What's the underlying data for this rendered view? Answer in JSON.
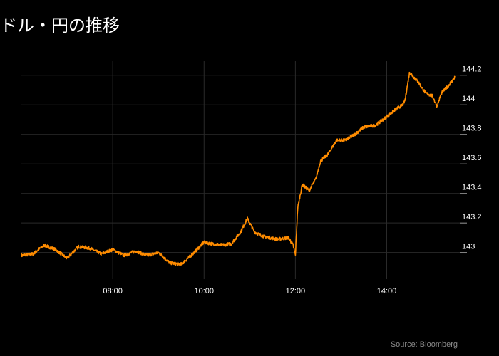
{
  "chart_data": {
    "type": "line",
    "title": "ドル・円の推移",
    "xlabel": "",
    "ylabel": "",
    "x_ticks": [
      "08:00",
      "10:00",
      "12:00",
      "14:00"
    ],
    "x_tick_values": [
      8.0,
      10.0,
      12.0,
      14.0
    ],
    "xlim": [
      6.0,
      15.6
    ],
    "y_ticks": [
      "143",
      "143.2",
      "143.4",
      "143.6",
      "143.8",
      "144",
      "144.2"
    ],
    "y_tick_values": [
      143.0,
      143.2,
      143.4,
      143.6,
      143.8,
      144.0,
      144.2
    ],
    "ylim": [
      142.82,
      144.3
    ],
    "grid": true,
    "series": [
      {
        "color": "#ff8c00",
        "x": [
          6.0,
          6.25,
          6.5,
          6.75,
          7.0,
          7.25,
          7.5,
          7.75,
          8.0,
          8.25,
          8.5,
          8.75,
          9.0,
          9.25,
          9.5,
          9.75,
          10.0,
          10.15,
          10.4,
          10.6,
          10.8,
          10.95,
          11.1,
          11.3,
          11.6,
          11.85,
          11.95,
          12.0,
          12.05,
          12.15,
          12.3,
          12.45,
          12.55,
          12.7,
          12.9,
          13.1,
          13.3,
          13.5,
          13.75,
          14.0,
          14.2,
          14.35,
          14.4,
          14.5,
          14.7,
          14.85,
          15.0,
          15.1,
          15.2,
          15.35,
          15.5
        ],
        "y": [
          142.98,
          142.99,
          143.05,
          143.02,
          142.96,
          143.04,
          143.03,
          142.99,
          143.02,
          142.98,
          143.01,
          142.98,
          143.0,
          142.93,
          142.92,
          142.99,
          143.07,
          143.06,
          143.05,
          143.06,
          143.14,
          143.23,
          143.14,
          143.11,
          143.09,
          143.1,
          143.05,
          142.98,
          143.3,
          143.46,
          143.42,
          143.5,
          143.62,
          143.66,
          143.76,
          143.76,
          143.8,
          143.85,
          143.86,
          143.92,
          143.97,
          144.0,
          144.03,
          144.22,
          144.15,
          144.08,
          144.06,
          143.99,
          144.08,
          144.13,
          144.19
        ]
      }
    ],
    "annotations": [
      "Source: Bloomberg"
    ]
  },
  "colors": {
    "background": "#000000",
    "line": "#ff8c00",
    "grid": "#2a2a2a",
    "tick_mark": "#9a9a9a",
    "source_text": "#8a8a8a"
  }
}
